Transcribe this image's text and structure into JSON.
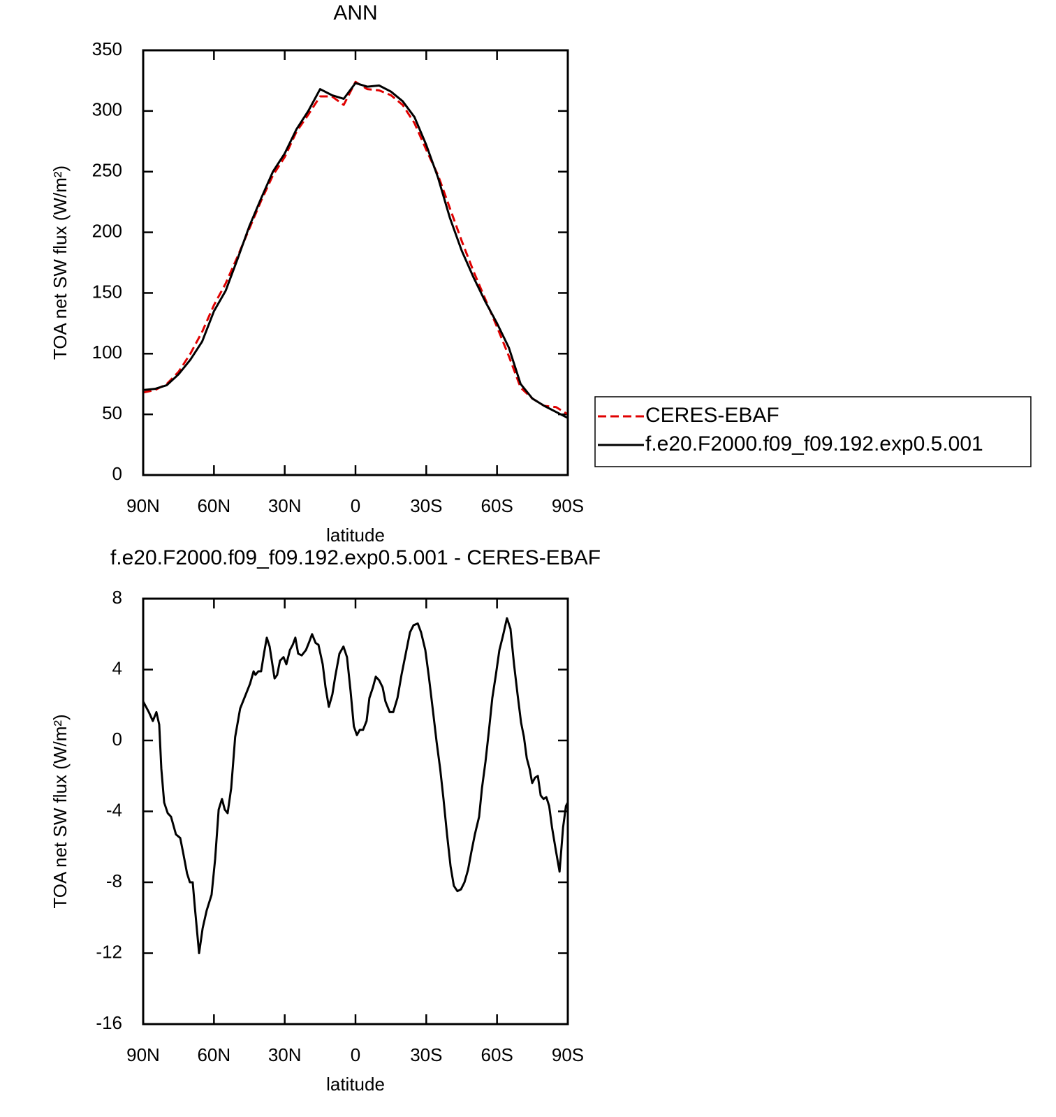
{
  "chart_data": [
    {
      "type": "line",
      "title": "ANN",
      "xlabel": "latitude",
      "ylabel": "TOA net SW flux (W/m²)",
      "x": [
        90,
        85,
        80,
        75,
        70,
        65,
        60,
        55,
        50,
        45,
        40,
        35,
        30,
        25,
        20,
        15,
        10,
        5,
        0,
        -5,
        -10,
        -15,
        -20,
        -25,
        -30,
        -35,
        -40,
        -45,
        -50,
        -55,
        -60,
        -65,
        -70,
        -75,
        -80,
        -85,
        -90
      ],
      "series": [
        {
          "name": "CERES-EBAF",
          "color": "#e00000",
          "style": "dashed",
          "values": [
            68,
            70,
            75,
            85,
            100,
            118,
            140,
            158,
            180,
            203,
            226,
            247,
            262,
            283,
            297,
            312,
            312,
            305,
            324,
            318,
            317,
            313,
            305,
            290,
            268,
            247,
            220,
            193,
            168,
            145,
            122,
            98,
            72,
            63,
            57,
            56,
            50
          ]
        },
        {
          "name": "f.e20.F2000.f09_f09.192.exp0.5.001",
          "color": "#000000",
          "style": "solid",
          "values": [
            70,
            71,
            74,
            83,
            95,
            110,
            135,
            152,
            178,
            205,
            228,
            250,
            265,
            285,
            300,
            318,
            313,
            310,
            323,
            320,
            321,
            316,
            308,
            295,
            272,
            245,
            212,
            185,
            163,
            143,
            125,
            105,
            75,
            63,
            57,
            52,
            47
          ]
        }
      ],
      "xlim": [
        90,
        -90
      ],
      "xticks": [
        {
          "value": 90,
          "label": "90N"
        },
        {
          "value": 60,
          "label": "60N"
        },
        {
          "value": 30,
          "label": "30N"
        },
        0,
        {
          "value": -30,
          "label": "30S"
        },
        {
          "value": -60,
          "label": "60S"
        },
        {
          "value": -90,
          "label": "90S"
        }
      ],
      "ylim": [
        0,
        350
      ],
      "yticks": [
        0,
        50,
        100,
        150,
        200,
        250,
        300,
        350
      ],
      "legend": "right"
    },
    {
      "type": "line",
      "title": "f.e20.F2000.f09_f09.192.exp0.5.001 - CERES-EBAF",
      "xlabel": "latitude",
      "ylabel": "TOA net SW flux (W/m²)",
      "x": [
        90,
        87.6,
        85.9,
        84.4,
        83.2,
        82.3,
        81.1,
        79.6,
        78.2,
        76.1,
        74.3,
        73.1,
        71.4,
        70.2,
        69,
        68.1,
        66.3,
        64.8,
        63.1,
        61,
        59.5,
        58,
        56.6,
        55.4,
        54.2,
        52.7,
        51,
        48.9,
        46.5,
        44.7,
        43.2,
        42.4,
        41.2,
        40,
        38.8,
        37.6,
        36.4,
        34.3,
        33.2,
        32,
        30.5,
        29.3,
        27.8,
        26.6,
        25.5,
        24.3,
        22.8,
        21,
        19.5,
        18.4,
        16.9,
        15.7,
        13.9,
        12.7,
        11.3,
        9.8,
        8.6,
        6.8,
        5.1,
        3.6,
        2.1,
        0.7,
        -0.6,
        -1.8,
        -3.2,
        -4.7,
        -5.9,
        -7.4,
        -8.6,
        -10,
        -11.5,
        -12.7,
        -14.5,
        -16,
        -17.8,
        -19.5,
        -21.3,
        -23.1,
        -24.6,
        -26.4,
        -27.8,
        -29.6,
        -31.1,
        -32.9,
        -34.4,
        -35.9,
        -37.3,
        -38.8,
        -40.3,
        -41.7,
        -43.2,
        -44.7,
        -46.2,
        -47.7,
        -49.1,
        -50.6,
        -52.4,
        -53.6,
        -55.1,
        -56.6,
        -58,
        -59.5,
        -61,
        -62.5,
        -64.2,
        -65.7,
        -67.2,
        -68.7,
        -70.2,
        -71.4,
        -72.6,
        -73.8,
        -74.9,
        -76.1,
        -77.3,
        -78.5,
        -79.7,
        -80.9,
        -82.1,
        -83.3,
        -84.8,
        -86.5,
        -88,
        -89.2,
        -90
      ],
      "values": [
        2.2,
        1.6,
        1.1,
        1.6,
        0.9,
        -1.6,
        -3.5,
        -4.1,
        -4.3,
        -5.3,
        -5.5,
        -6.3,
        -7.5,
        -8.0,
        -8.0,
        -9.4,
        -12.0,
        -10.6,
        -9.6,
        -8.7,
        -6.7,
        -3.9,
        -3.3,
        -3.9,
        -4.1,
        -2.7,
        0.2,
        1.8,
        2.6,
        3.2,
        3.9,
        3.7,
        3.9,
        3.9,
        4.9,
        5.8,
        5.3,
        3.5,
        3.7,
        4.5,
        4.7,
        4.3,
        5.1,
        5.4,
        5.8,
        4.9,
        4.8,
        5.1,
        5.6,
        6.0,
        5.5,
        5.4,
        4.3,
        3.0,
        1.9,
        2.6,
        3.6,
        4.9,
        5.3,
        4.7,
        2.8,
        0.8,
        0.3,
        0.6,
        0.6,
        1.1,
        2.4,
        3.0,
        3.6,
        3.4,
        3.0,
        2.2,
        1.6,
        1.6,
        2.4,
        3.7,
        4.9,
        6.1,
        6.5,
        6.6,
        6.1,
        5.1,
        3.6,
        1.6,
        -0.1,
        -1.6,
        -3.3,
        -5.3,
        -7.1,
        -8.2,
        -8.5,
        -8.4,
        -8.0,
        -7.3,
        -6.3,
        -5.3,
        -4.3,
        -2.7,
        -1.2,
        0.6,
        2.4,
        3.7,
        5.1,
        5.9,
        6.9,
        6.3,
        4.3,
        2.6,
        1.0,
        0.2,
        -1.0,
        -1.6,
        -2.4,
        -2.1,
        -2.0,
        -3.1,
        -3.3,
        -3.2,
        -3.7,
        -4.9,
        -6.1,
        -7.4,
        -4.9,
        -3.7,
        -3.5
      ],
      "color": "#000000",
      "xlim": [
        90,
        -90
      ],
      "xticks": [
        {
          "value": 90,
          "label": "90N"
        },
        {
          "value": 60,
          "label": "60N"
        },
        {
          "value": 30,
          "label": "30N"
        },
        0,
        {
          "value": -30,
          "label": "30S"
        },
        {
          "value": -60,
          "label": "60S"
        },
        {
          "value": -90,
          "label": "90S"
        }
      ],
      "ylim": [
        -16,
        8
      ],
      "yticks": [
        -16,
        -12,
        -8,
        -4,
        0,
        4,
        8
      ]
    }
  ]
}
